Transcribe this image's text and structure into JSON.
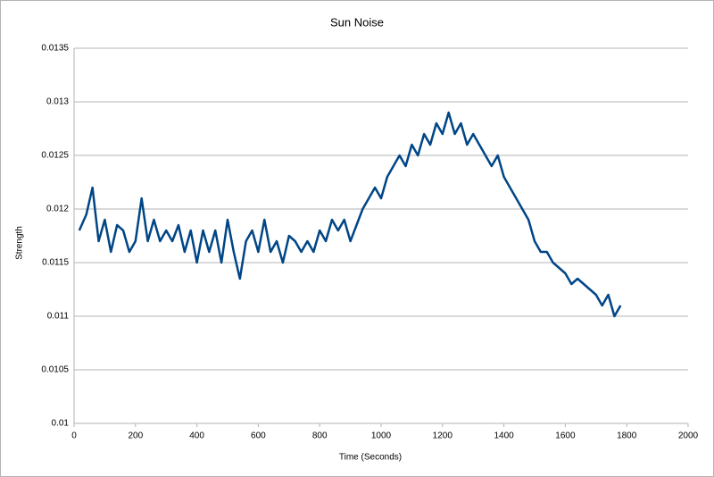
{
  "chart_data": {
    "type": "line",
    "title": "Sun Noise",
    "xlabel": "Time (Seconds)",
    "ylabel": "Strength",
    "x": [
      17,
      40,
      60,
      80,
      100,
      120,
      140,
      160,
      180,
      200,
      220,
      240,
      260,
      280,
      300,
      320,
      340,
      360,
      380,
      400,
      420,
      440,
      460,
      480,
      500,
      520,
      540,
      560,
      580,
      600,
      620,
      640,
      660,
      680,
      700,
      720,
      740,
      760,
      780,
      800,
      820,
      840,
      860,
      880,
      900,
      920,
      940,
      960,
      980,
      1000,
      1020,
      1040,
      1060,
      1080,
      1100,
      1120,
      1140,
      1160,
      1180,
      1200,
      1220,
      1240,
      1260,
      1280,
      1300,
      1320,
      1340,
      1360,
      1380,
      1400,
      1420,
      1440,
      1460,
      1480,
      1500,
      1520,
      1540,
      1560,
      1580,
      1600,
      1620,
      1640,
      1660,
      1680,
      1700,
      1720,
      1740,
      1760,
      1780
    ],
    "series": [
      {
        "name": "Strength",
        "color": "#004586",
        "values": [
          0.0118,
          0.01195,
          0.0122,
          0.0117,
          0.0119,
          0.0116,
          0.01185,
          0.0118,
          0.0116,
          0.0117,
          0.0121,
          0.0117,
          0.0119,
          0.0117,
          0.0118,
          0.0117,
          0.01185,
          0.0116,
          0.0118,
          0.0115,
          0.0118,
          0.0116,
          0.0118,
          0.0115,
          0.0119,
          0.0116,
          0.01135,
          0.0117,
          0.0118,
          0.0116,
          0.0119,
          0.0116,
          0.0117,
          0.0115,
          0.01175,
          0.0117,
          0.0116,
          0.0117,
          0.0116,
          0.0118,
          0.0117,
          0.0119,
          0.0118,
          0.0119,
          0.0117,
          0.01185,
          0.012,
          0.0121,
          0.0122,
          0.0121,
          0.0123,
          0.0124,
          0.0125,
          0.0124,
          0.0126,
          0.0125,
          0.0127,
          0.0126,
          0.0128,
          0.0127,
          0.0129,
          0.0127,
          0.0128,
          0.0126,
          0.0127,
          0.0126,
          0.0125,
          0.0124,
          0.0125,
          0.0123,
          0.0122,
          0.0121,
          0.012,
          0.0119,
          0.0117,
          0.0116,
          0.0116,
          0.0115,
          0.01145,
          0.0114,
          0.0113,
          0.01135,
          0.0113,
          0.01125,
          0.0112,
          0.0111,
          0.0112,
          0.011,
          0.0111
        ]
      }
    ],
    "xlim": [
      0,
      2000
    ],
    "xticks": [
      0,
      200,
      400,
      600,
      800,
      1000,
      1200,
      1400,
      1600,
      1800,
      2000
    ],
    "ylim": [
      0.01,
      0.0135
    ],
    "yticks": [
      0.01,
      0.0105,
      0.011,
      0.0115,
      0.012,
      0.0125,
      0.013,
      0.0135
    ],
    "grid": true
  }
}
